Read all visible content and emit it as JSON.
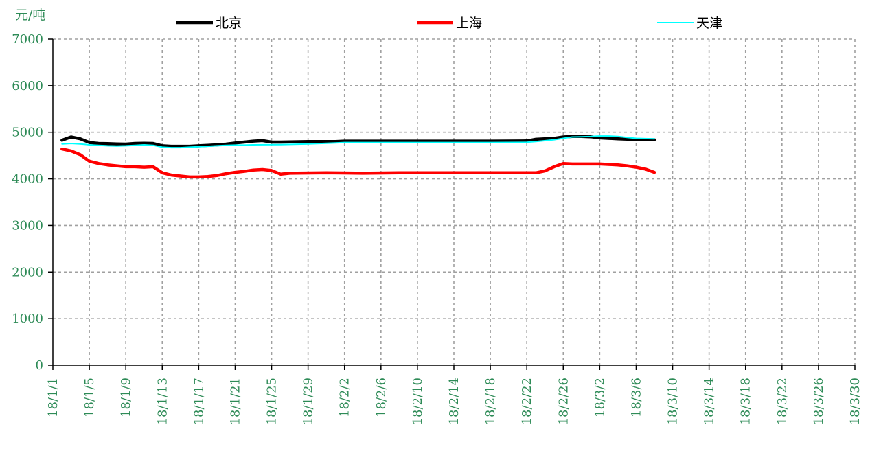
{
  "chart_data": {
    "type": "line",
    "ylabel": "元/吨",
    "ylim": [
      0,
      7000
    ],
    "yticks": [
      0,
      1000,
      2000,
      3000,
      4000,
      5000,
      6000,
      7000
    ],
    "xticks": [
      "18/1/1",
      "18/1/5",
      "18/1/9",
      "18/1/13",
      "18/1/17",
      "18/1/21",
      "18/1/25",
      "18/1/29",
      "18/2/2",
      "18/2/6",
      "18/2/10",
      "18/2/14",
      "18/2/18",
      "18/2/22",
      "18/2/26",
      "18/3/2",
      "18/3/6",
      "18/3/10",
      "18/3/14",
      "18/3/18",
      "18/3/22",
      "18/3/26",
      "18/3/30"
    ],
    "x_range_days": [
      0,
      88
    ],
    "grid": true,
    "legend_position": "top",
    "series": [
      {
        "name": "北京",
        "color": "#000000",
        "points": [
          [
            1,
            4830
          ],
          [
            2,
            4900
          ],
          [
            3,
            4860
          ],
          [
            4,
            4780
          ],
          [
            5,
            4760
          ],
          [
            6,
            4755
          ],
          [
            7,
            4750
          ],
          [
            8,
            4745
          ],
          [
            9,
            4760
          ],
          [
            10,
            4765
          ],
          [
            11,
            4760
          ],
          [
            12,
            4710
          ],
          [
            13,
            4700
          ],
          [
            14,
            4700
          ],
          [
            15,
            4700
          ],
          [
            16,
            4710
          ],
          [
            17,
            4720
          ],
          [
            18,
            4730
          ],
          [
            19,
            4745
          ],
          [
            20,
            4770
          ],
          [
            21,
            4790
          ],
          [
            22,
            4810
          ],
          [
            23,
            4820
          ],
          [
            24,
            4790
          ],
          [
            25,
            4790
          ],
          [
            28,
            4800
          ],
          [
            31,
            4800
          ],
          [
            32,
            4810
          ],
          [
            40,
            4810
          ],
          [
            48,
            4810
          ],
          [
            52,
            4815
          ],
          [
            53,
            4850
          ],
          [
            55,
            4870
          ],
          [
            56,
            4900
          ],
          [
            57,
            4910
          ],
          [
            58,
            4910
          ],
          [
            59,
            4905
          ],
          [
            60,
            4880
          ],
          [
            62,
            4860
          ],
          [
            64,
            4845
          ],
          [
            66,
            4840
          ]
        ]
      },
      {
        "name": "上海",
        "color": "#ff0000",
        "points": [
          [
            1,
            4640
          ],
          [
            2,
            4600
          ],
          [
            3,
            4520
          ],
          [
            4,
            4380
          ],
          [
            5,
            4330
          ],
          [
            6,
            4300
          ],
          [
            7,
            4280
          ],
          [
            8,
            4260
          ],
          [
            9,
            4260
          ],
          [
            10,
            4250
          ],
          [
            11,
            4260
          ],
          [
            12,
            4130
          ],
          [
            13,
            4080
          ],
          [
            14,
            4060
          ],
          [
            15,
            4040
          ],
          [
            16,
            4040
          ],
          [
            17,
            4050
          ],
          [
            18,
            4070
          ],
          [
            19,
            4110
          ],
          [
            20,
            4140
          ],
          [
            21,
            4160
          ],
          [
            22,
            4190
          ],
          [
            23,
            4200
          ],
          [
            24,
            4180
          ],
          [
            25,
            4100
          ],
          [
            26,
            4120
          ],
          [
            30,
            4130
          ],
          [
            34,
            4120
          ],
          [
            38,
            4130
          ],
          [
            45,
            4130
          ],
          [
            53,
            4130
          ],
          [
            54,
            4170
          ],
          [
            55,
            4260
          ],
          [
            56,
            4330
          ],
          [
            57,
            4320
          ],
          [
            58,
            4320
          ],
          [
            60,
            4320
          ],
          [
            62,
            4300
          ],
          [
            63,
            4280
          ],
          [
            64,
            4250
          ],
          [
            65,
            4210
          ],
          [
            66,
            4140
          ]
        ]
      },
      {
        "name": "天津",
        "color": "#00ffff",
        "points": [
          [
            1,
            4750
          ],
          [
            2,
            4760
          ],
          [
            3,
            4750
          ],
          [
            4,
            4730
          ],
          [
            5,
            4720
          ],
          [
            6,
            4710
          ],
          [
            7,
            4705
          ],
          [
            8,
            4710
          ],
          [
            9,
            4720
          ],
          [
            10,
            4730
          ],
          [
            11,
            4720
          ],
          [
            12,
            4680
          ],
          [
            13,
            4670
          ],
          [
            14,
            4670
          ],
          [
            15,
            4680
          ],
          [
            16,
            4690
          ],
          [
            17,
            4700
          ],
          [
            18,
            4710
          ],
          [
            19,
            4720
          ],
          [
            20,
            4725
          ],
          [
            21,
            4725
          ],
          [
            22,
            4730
          ],
          [
            25,
            4735
          ],
          [
            28,
            4750
          ],
          [
            31,
            4770
          ],
          [
            32,
            4780
          ],
          [
            40,
            4780
          ],
          [
            48,
            4780
          ],
          [
            52,
            4785
          ],
          [
            53,
            4800
          ],
          [
            55,
            4840
          ],
          [
            56,
            4870
          ],
          [
            57,
            4900
          ],
          [
            58,
            4905
          ],
          [
            59,
            4910
          ],
          [
            60,
            4920
          ],
          [
            61,
            4920
          ],
          [
            62,
            4910
          ],
          [
            63,
            4890
          ],
          [
            64,
            4870
          ],
          [
            65,
            4865
          ],
          [
            66,
            4860
          ]
        ]
      }
    ]
  }
}
